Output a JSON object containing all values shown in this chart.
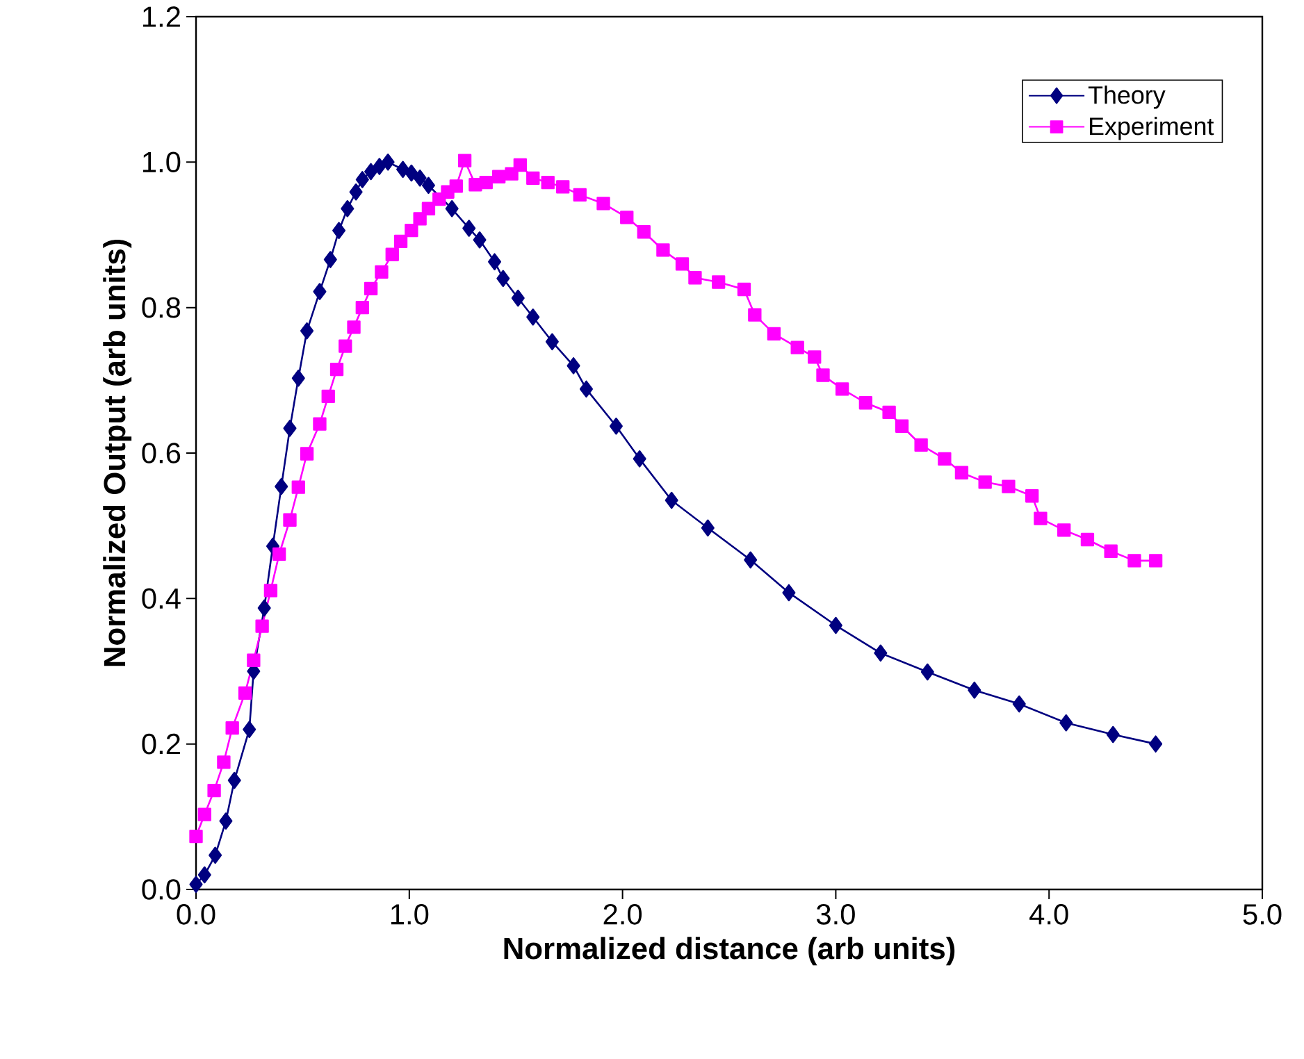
{
  "chart_data": {
    "type": "line",
    "xlabel": "Normalized distance (arb units)",
    "ylabel": "Normalized Output (arb units)",
    "xlim": [
      0,
      5
    ],
    "ylim": [
      0,
      1.2
    ],
    "xticks": [
      {
        "value": 0,
        "label": "0.0"
      },
      {
        "value": 1,
        "label": "1.0"
      },
      {
        "value": 2,
        "label": "2.0"
      },
      {
        "value": 3,
        "label": "3.0"
      },
      {
        "value": 4,
        "label": "4.0"
      },
      {
        "value": 5,
        "label": "5.0"
      }
    ],
    "yticks": [
      {
        "value": 0,
        "label": "0.0"
      },
      {
        "value": 0.2,
        "label": "0.2"
      },
      {
        "value": 0.4,
        "label": "0.4"
      },
      {
        "value": 0.6,
        "label": "0.6"
      },
      {
        "value": 0.8,
        "label": "0.8"
      },
      {
        "value": 1.0,
        "label": "1.0"
      },
      {
        "value": 1.2,
        "label": "1.2"
      }
    ],
    "grid": false,
    "legend": "top right",
    "line_style": "solid",
    "series": [
      {
        "name": "Theory",
        "color": "#000080",
        "marker": "diamond",
        "x": [
          0.0,
          0.04,
          0.09,
          0.14,
          0.18,
          0.25,
          0.27,
          0.32,
          0.36,
          0.4,
          0.44,
          0.48,
          0.52,
          0.58,
          0.63,
          0.67,
          0.71,
          0.75,
          0.78,
          0.82,
          0.86,
          0.9,
          0.97,
          1.01,
          1.05,
          1.09,
          1.2,
          1.28,
          1.33,
          1.4,
          1.44,
          1.51,
          1.58,
          1.67,
          1.77,
          1.83,
          1.97,
          2.08,
          2.23,
          2.4,
          2.6,
          2.78,
          3.0,
          3.21,
          3.43,
          3.65,
          3.86,
          4.08,
          4.3,
          4.5
        ],
        "values": [
          0.007,
          0.02,
          0.047,
          0.094,
          0.15,
          0.22,
          0.3,
          0.387,
          0.472,
          0.554,
          0.634,
          0.703,
          0.768,
          0.822,
          0.866,
          0.906,
          0.936,
          0.959,
          0.976,
          0.987,
          0.994,
          1.0,
          0.99,
          0.985,
          0.978,
          0.968,
          0.936,
          0.909,
          0.893,
          0.863,
          0.84,
          0.813,
          0.787,
          0.753,
          0.72,
          0.688,
          0.637,
          0.592,
          0.535,
          0.497,
          0.453,
          0.408,
          0.363,
          0.325,
          0.299,
          0.274,
          0.255,
          0.229,
          0.213,
          0.2
        ]
      },
      {
        "name": "Experiment",
        "color": "#ff00ff",
        "marker": "square",
        "x": [
          0.0,
          0.04,
          0.085,
          0.13,
          0.17,
          0.23,
          0.27,
          0.31,
          0.35,
          0.39,
          0.44,
          0.48,
          0.52,
          0.58,
          0.62,
          0.66,
          0.7,
          0.74,
          0.78,
          0.82,
          0.87,
          0.92,
          0.96,
          1.01,
          1.05,
          1.09,
          1.14,
          1.18,
          1.22,
          1.26,
          1.31,
          1.36,
          1.42,
          1.48,
          1.52,
          1.58,
          1.65,
          1.72,
          1.8,
          1.91,
          2.02,
          2.1,
          2.19,
          2.28,
          2.34,
          2.45,
          2.57,
          2.62,
          2.71,
          2.82,
          2.9,
          2.94,
          3.03,
          3.14,
          3.25,
          3.31,
          3.4,
          3.51,
          3.59,
          3.7,
          3.81,
          3.92,
          3.96,
          4.07,
          4.18,
          4.29,
          4.4,
          4.5
        ],
        "values": [
          0.073,
          0.103,
          0.136,
          0.175,
          0.222,
          0.27,
          0.315,
          0.362,
          0.411,
          0.461,
          0.508,
          0.553,
          0.599,
          0.64,
          0.678,
          0.715,
          0.747,
          0.773,
          0.8,
          0.826,
          0.849,
          0.873,
          0.891,
          0.906,
          0.922,
          0.936,
          0.949,
          0.959,
          0.967,
          1.002,
          0.969,
          0.972,
          0.98,
          0.984,
          0.996,
          0.978,
          0.972,
          0.966,
          0.955,
          0.943,
          0.924,
          0.904,
          0.879,
          0.86,
          0.841,
          0.835,
          0.825,
          0.79,
          0.764,
          0.745,
          0.732,
          0.707,
          0.688,
          0.669,
          0.656,
          0.637,
          0.611,
          0.592,
          0.573,
          0.56,
          0.554,
          0.541,
          0.51,
          0.494,
          0.481,
          0.465,
          0.452,
          0.452
        ]
      }
    ]
  }
}
